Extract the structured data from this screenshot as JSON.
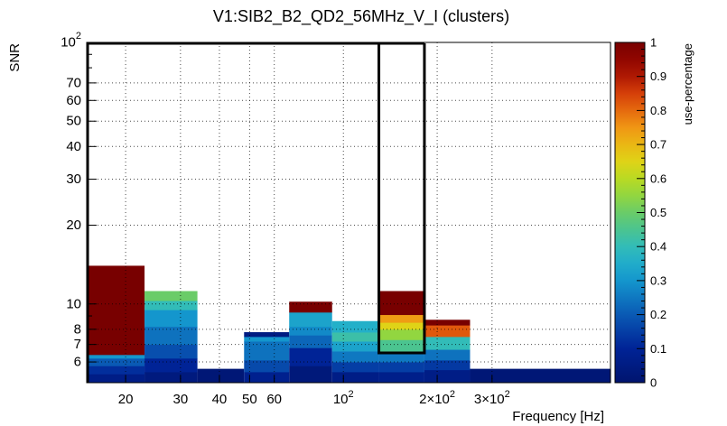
{
  "chart_data": {
    "type": "heatmap",
    "title": "V1:SIB2_B2_QD2_56MHz_V_I (clusters)",
    "xlabel": "Frequency [Hz]",
    "ylabel": "SNR",
    "zlabel": "use-percentage",
    "x_scale": "log",
    "y_scale": "log",
    "xlim": [
      15,
      720
    ],
    "ylim": [
      5,
      100
    ],
    "zlim": [
      0,
      1
    ],
    "grid": true,
    "x_ticks": [
      {
        "value": 20,
        "label": "20"
      },
      {
        "value": 30,
        "label": "30"
      },
      {
        "value": 40,
        "label": "40"
      },
      {
        "value": 50,
        "label": "50"
      },
      {
        "value": 60,
        "label": "60"
      },
      {
        "value": 100,
        "label": "10",
        "exp": "2"
      },
      {
        "value": 200,
        "label": "2×10",
        "exp": "2"
      },
      {
        "value": 300,
        "label": "3×10",
        "exp": "2"
      }
    ],
    "y_ticks": [
      {
        "value": 6,
        "label": "6"
      },
      {
        "value": 7,
        "label": "7"
      },
      {
        "value": 8,
        "label": "8"
      },
      {
        "value": 10,
        "label": "10"
      },
      {
        "value": 20,
        "label": "20"
      },
      {
        "value": 30,
        "label": "30"
      },
      {
        "value": 40,
        "label": "40"
      },
      {
        "value": 50,
        "label": "50"
      },
      {
        "value": 60,
        "label": "60"
      },
      {
        "value": 70,
        "label": "70"
      },
      {
        "value": 100,
        "label": "10",
        "exp": "2"
      }
    ],
    "y_minor_ticks": [
      9,
      80,
      90
    ],
    "colorbar_ticks": [
      {
        "value": 0,
        "label": "0"
      },
      {
        "value": 0.1,
        "label": "0.1"
      },
      {
        "value": 0.2,
        "label": "0.2"
      },
      {
        "value": 0.3,
        "label": "0.3"
      },
      {
        "value": 0.4,
        "label": "0.4"
      },
      {
        "value": 0.5,
        "label": "0.5"
      },
      {
        "value": 0.6,
        "label": "0.6"
      },
      {
        "value": 0.7,
        "label": "0.7"
      },
      {
        "value": 0.8,
        "label": "0.8"
      },
      {
        "value": 0.9,
        "label": "0.9"
      },
      {
        "value": 1,
        "label": "1"
      }
    ],
    "columns": [
      {
        "x0": 15,
        "x1": 23,
        "cells": [
          {
            "y0": 5.0,
            "y1": 5.4,
            "z": 0.06
          },
          {
            "y0": 5.4,
            "y1": 5.8,
            "z": 0.12
          },
          {
            "y0": 5.8,
            "y1": 6.2,
            "z": 0.2
          },
          {
            "y0": 6.2,
            "y1": 6.4,
            "z": 0.3
          },
          {
            "y0": 6.4,
            "y1": 14,
            "z": 1.0
          }
        ]
      },
      {
        "x0": 23,
        "x1": 34,
        "cells": [
          {
            "y0": 5.0,
            "y1": 5.5,
            "z": 0.04
          },
          {
            "y0": 5.5,
            "y1": 6.2,
            "z": 0.1
          },
          {
            "y0": 6.2,
            "y1": 7.0,
            "z": 0.18
          },
          {
            "y0": 7.0,
            "y1": 8.2,
            "z": 0.24
          },
          {
            "y0": 8.2,
            "y1": 9.5,
            "z": 0.3
          },
          {
            "y0": 9.5,
            "y1": 10.3,
            "z": 0.4
          },
          {
            "y0": 10.3,
            "y1": 11.2,
            "z": 0.5
          }
        ]
      },
      {
        "x0": 34,
        "x1": 48,
        "cells": [
          {
            "y0": 5.0,
            "y1": 5.65,
            "z": 0.02
          }
        ]
      },
      {
        "x0": 48,
        "x1": 67,
        "cells": [
          {
            "y0": 5.0,
            "y1": 5.5,
            "z": 0.08
          },
          {
            "y0": 5.5,
            "y1": 6.1,
            "z": 0.17
          },
          {
            "y0": 6.1,
            "y1": 7.2,
            "z": 0.24
          },
          {
            "y0": 7.2,
            "y1": 7.5,
            "z": 0.3
          },
          {
            "y0": 7.5,
            "y1": 7.8,
            "z": 0.05
          }
        ]
      },
      {
        "x0": 67,
        "x1": 92,
        "cells": [
          {
            "y0": 5.0,
            "y1": 5.8,
            "z": 0.03
          },
          {
            "y0": 5.8,
            "y1": 6.8,
            "z": 0.1
          },
          {
            "y0": 6.8,
            "y1": 7.6,
            "z": 0.22
          },
          {
            "y0": 7.6,
            "y1": 8.2,
            "z": 0.28
          },
          {
            "y0": 8.2,
            "y1": 9.3,
            "z": 0.33
          },
          {
            "y0": 9.3,
            "y1": 10.2,
            "z": 1.0
          }
        ]
      },
      {
        "x0": 92,
        "x1": 130,
        "cells": [
          {
            "y0": 5.0,
            "y1": 5.5,
            "z": 0.06
          },
          {
            "y0": 5.5,
            "y1": 6.0,
            "z": 0.15
          },
          {
            "y0": 6.0,
            "y1": 6.6,
            "z": 0.25
          },
          {
            "y0": 6.6,
            "y1": 7.2,
            "z": 0.33
          },
          {
            "y0": 7.2,
            "y1": 7.8,
            "z": 0.42
          },
          {
            "y0": 7.8,
            "y1": 8.6,
            "z": 0.36
          }
        ]
      },
      {
        "x0": 130,
        "x1": 182,
        "cells": [
          {
            "y0": 5.0,
            "y1": 5.5,
            "z": 0.07
          },
          {
            "y0": 5.5,
            "y1": 6.0,
            "z": 0.15
          },
          {
            "y0": 6.0,
            "y1": 6.5,
            "z": 0.25
          },
          {
            "y0": 6.5,
            "y1": 7.3,
            "z": 0.45
          },
          {
            "y0": 7.3,
            "y1": 8.0,
            "z": 0.55
          },
          {
            "y0": 8.0,
            "y1": 8.5,
            "z": 0.65
          },
          {
            "y0": 8.5,
            "y1": 9.1,
            "z": 0.74
          },
          {
            "y0": 9.1,
            "y1": 11.2,
            "z": 1.0
          }
        ]
      },
      {
        "x0": 182,
        "x1": 255,
        "cells": [
          {
            "y0": 5.0,
            "y1": 5.6,
            "z": 0.06
          },
          {
            "y0": 5.6,
            "y1": 6.1,
            "z": 0.14
          },
          {
            "y0": 6.1,
            "y1": 6.7,
            "z": 0.24
          },
          {
            "y0": 6.7,
            "y1": 7.5,
            "z": 0.4
          },
          {
            "y0": 7.5,
            "y1": 8.3,
            "z": 0.82
          },
          {
            "y0": 8.3,
            "y1": 8.7,
            "z": 1.0
          }
        ]
      },
      {
        "x0": 255,
        "x1": 720,
        "cells": [
          {
            "y0": 5.0,
            "y1": 5.65,
            "z": 0.02
          }
        ]
      }
    ],
    "highlight_box": {
      "x0": 130,
      "x1": 182,
      "y0": 6.5,
      "y1": 100
    },
    "outline_y": 100
  }
}
